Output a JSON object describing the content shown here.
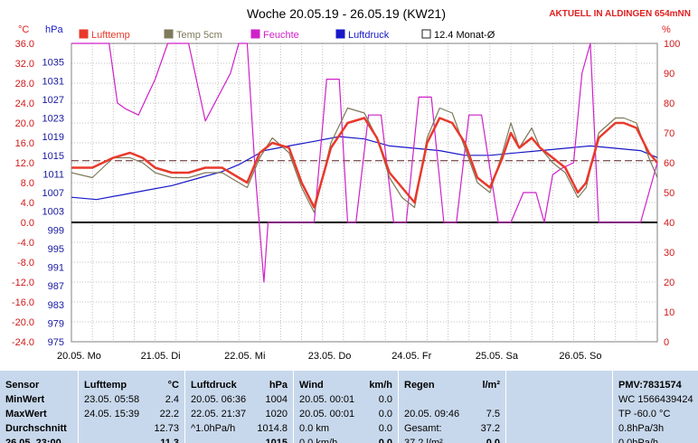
{
  "header": {
    "title": "Woche 20.05.19 - 26.05.19 (KW21)",
    "station": "AKTUELL IN ALDINGEN 654mNN"
  },
  "axes": {
    "left_unit": "°C",
    "hpa_unit": "hPa",
    "right_unit": "%"
  },
  "legend": [
    {
      "label": "Lufttemp",
      "color": "#e8392c",
      "outline": "#e8392c"
    },
    {
      "label": "Temp 5cm",
      "color": "#7e7a5a",
      "outline": "#7e7a5a"
    },
    {
      "label": "Feuchte",
      "color": "#d020c8",
      "outline": "#d020c8"
    },
    {
      "label": "Luftdruck",
      "color": "#1818c8",
      "outline": "#1818c8"
    },
    {
      "label": "12.4 Monat-Ø",
      "color": "#ffffff",
      "outline": "#202020"
    }
  ],
  "chart_data": {
    "type": "line",
    "title": "Woche 20.05.19 - 26.05.19 (KW21)",
    "x_ticks": [
      "20.05. Mo",
      "21.05. Di",
      "22.05. Mi",
      "23.05. Do",
      "24.05. Fr",
      "25.05. Sa",
      "26.05. So"
    ],
    "x_range_days": [
      0,
      7
    ],
    "y_left": {
      "unit": "°C",
      "range": [
        -24,
        36
      ],
      "ticks": [
        "36.0",
        "32.0",
        "28.0",
        "24.0",
        "20.0",
        "16.0",
        "12.0",
        "8.0",
        "4.0",
        "0.0",
        "-4.0",
        "-8.0",
        "-12.0",
        "-16.0",
        "-20.0",
        "-24.0"
      ]
    },
    "y_pressure": {
      "unit": "hPa",
      "range": [
        975,
        1039
      ],
      "ticks": [
        "1035",
        "1031",
        "1027",
        "1023",
        "1019",
        "1015",
        "1011",
        "1007",
        "1003",
        "999",
        "995",
        "991",
        "987",
        "983",
        "979",
        "975"
      ]
    },
    "y_right": {
      "unit": "%",
      "range": [
        0,
        100
      ],
      "ticks": [
        "100",
        "90",
        "80",
        "70",
        "60",
        "50",
        "40",
        "30",
        "20",
        "10",
        "0"
      ]
    },
    "reference_line": {
      "name": "12.4 Monat-Ø",
      "value": 12.4,
      "axis": "°C"
    },
    "series": [
      {
        "name": "Lufttemp",
        "axis": "°C",
        "color": "#e8392c",
        "x": [
          0,
          0.25,
          0.5,
          0.7,
          0.85,
          1,
          1.2,
          1.4,
          1.6,
          1.8,
          2,
          2.1,
          2.25,
          2.4,
          2.6,
          2.75,
          2.9,
          3.1,
          3.3,
          3.5,
          3.65,
          3.8,
          3.95,
          4.1,
          4.25,
          4.4,
          4.55,
          4.7,
          4.85,
          5,
          5.15,
          5.25,
          5.35,
          5.5,
          5.6,
          5.75,
          5.9,
          6.05,
          6.15,
          6.3,
          6.5,
          6.6,
          6.75,
          6.9,
          7
        ],
        "y": [
          11,
          11,
          13,
          14,
          13,
          11,
          10,
          10,
          11,
          11,
          9,
          8,
          14,
          16,
          15,
          8,
          3,
          15,
          20,
          21,
          17,
          10,
          7,
          4,
          16,
          21,
          20,
          16,
          9,
          7,
          13,
          18,
          15,
          17,
          15,
          13,
          11,
          6,
          8,
          17,
          20,
          20,
          19,
          14,
          12
        ]
      },
      {
        "name": "Temp 5cm",
        "axis": "°C",
        "color": "#7e7a5a",
        "x": [
          0,
          0.25,
          0.5,
          0.7,
          0.85,
          1,
          1.2,
          1.4,
          1.6,
          1.8,
          2,
          2.1,
          2.25,
          2.4,
          2.6,
          2.75,
          2.9,
          3.1,
          3.3,
          3.5,
          3.65,
          3.8,
          3.95,
          4.1,
          4.25,
          4.4,
          4.55,
          4.7,
          4.85,
          5,
          5.15,
          5.25,
          5.35,
          5.5,
          5.6,
          5.75,
          5.9,
          6.05,
          6.15,
          6.3,
          6.5,
          6.6,
          6.75,
          6.9,
          7
        ],
        "y": [
          10,
          9,
          13,
          13,
          12,
          10,
          9,
          9,
          10,
          10,
          8,
          7,
          13,
          17,
          14,
          7,
          2,
          16,
          23,
          22,
          17,
          9,
          5,
          3,
          17,
          23,
          22,
          15,
          8,
          6,
          14,
          20,
          15,
          19,
          15,
          12,
          10,
          5,
          7,
          18,
          21,
          21,
          20,
          13,
          9
        ]
      },
      {
        "name": "Feuchte",
        "axis": "%",
        "color": "#d020c8",
        "x": [
          0,
          0.45,
          0.55,
          0.65,
          0.8,
          1,
          1.15,
          1.4,
          1.6,
          1.9,
          2,
          2.1,
          2.2,
          2.3,
          2.35,
          2.45,
          2.65,
          2.75,
          2.9,
          3.05,
          3.2,
          3.3,
          3.4,
          3.55,
          3.7,
          3.85,
          4.0,
          4.15,
          4.3,
          4.45,
          4.6,
          4.75,
          4.9,
          5.1,
          5.25,
          5.4,
          5.55,
          5.65,
          5.75,
          5.85,
          6.0,
          6.1,
          6.2,
          6.3,
          6.45,
          6.6,
          6.8,
          7
        ],
        "y": [
          100,
          100,
          80,
          78,
          76,
          88,
          100,
          100,
          74,
          90,
          100,
          100,
          55,
          20,
          40,
          40,
          40,
          40,
          40,
          88,
          88,
          40,
          40,
          76,
          76,
          40,
          40,
          82,
          82,
          40,
          40,
          76,
          76,
          40,
          40,
          50,
          50,
          40,
          56,
          58,
          60,
          90,
          100,
          40,
          40,
          40,
          40,
          60
        ]
      },
      {
        "name": "Luftdruck",
        "axis": "hPa",
        "color": "#1818c8",
        "x": [
          0,
          0.3,
          0.6,
          0.9,
          1.2,
          1.5,
          1.8,
          2,
          2.3,
          2.6,
          2.9,
          3.2,
          3.5,
          3.8,
          4.1,
          4.4,
          4.7,
          5,
          5.3,
          5.6,
          5.9,
          6.2,
          6.5,
          6.8,
          7
        ],
        "y": [
          1006,
          1005.5,
          1006.5,
          1007.5,
          1008.5,
          1010,
          1011.5,
          1013,
          1016,
          1017,
          1018,
          1019,
          1018.5,
          1017,
          1016.5,
          1016,
          1015,
          1015,
          1015.5,
          1016,
          1016.5,
          1017,
          1016.5,
          1016,
          1014.5
        ]
      }
    ]
  },
  "stats": {
    "sensor": {
      "rows": [
        "Sensor",
        "MinWert",
        "MaxWert",
        "Durchschnitt",
        "26.05. 23:00"
      ]
    },
    "lufttemp": {
      "header": "Lufttemp",
      "unit": "°C",
      "rows": [
        [
          "23.05.  05:58",
          "2.4"
        ],
        [
          "24.05.  15:39",
          "22.2"
        ],
        [
          "",
          "12.73"
        ],
        [
          "",
          "11.3"
        ]
      ]
    },
    "luftdruck": {
      "header": "Luftdruck",
      "unit": "hPa",
      "rows": [
        [
          "20.05.  06:36",
          "1004"
        ],
        [
          "22.05.  21:37",
          "1020"
        ],
        [
          "^1.0hPa/h",
          "1014.8"
        ],
        [
          "",
          "1015"
        ]
      ]
    },
    "wind": {
      "header": "Wind",
      "unit": "km/h",
      "rows": [
        [
          "20.05.  00:01",
          "0.0"
        ],
        [
          "20.05.  00:01",
          "0.0"
        ],
        [
          "0.0 km",
          "0.0"
        ],
        [
          "0.0 km/h",
          "0.0"
        ]
      ]
    },
    "regen": {
      "header": "Regen",
      "unit": "l/m²",
      "rows": [
        [
          "",
          ""
        ],
        [
          "20.05.  09:46",
          "7.5"
        ],
        [
          "Gesamt:",
          "37.2"
        ],
        [
          "37.2 l/m²",
          "0.0"
        ]
      ]
    },
    "pmv": {
      "rows": [
        "PMV:7831574",
        "WC 1566439424",
        "TP -60.0 °C",
        "0.8hPa/3h",
        "0.0hPa/h"
      ]
    }
  }
}
